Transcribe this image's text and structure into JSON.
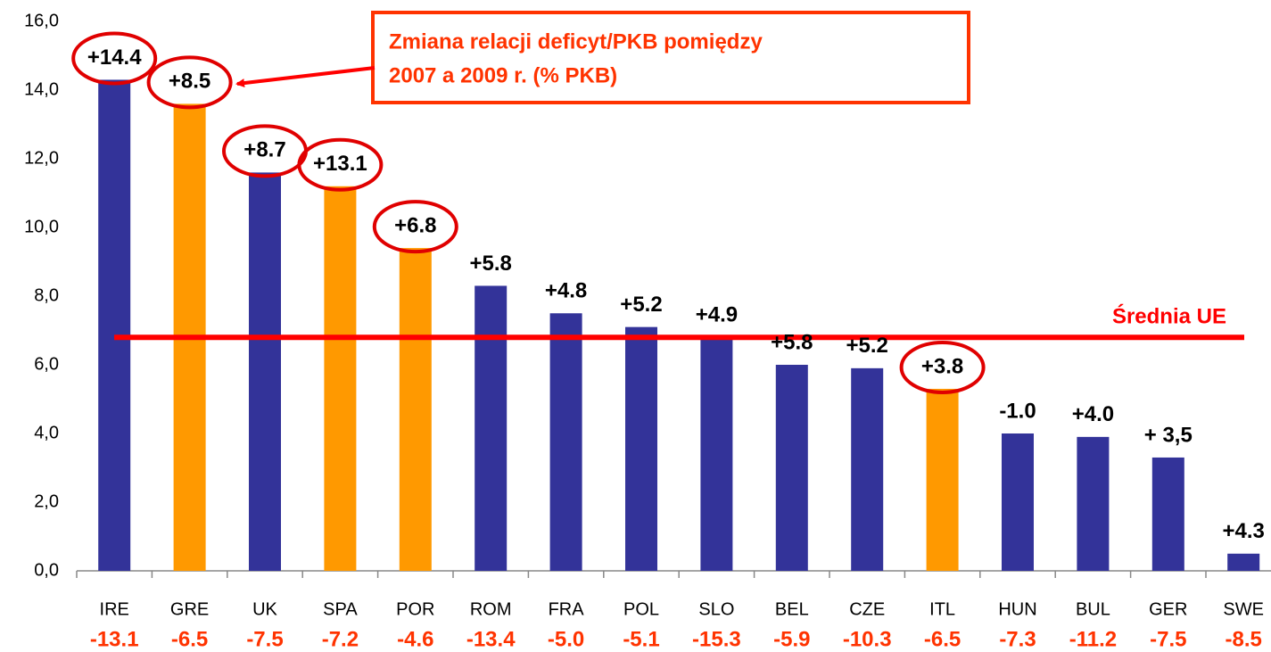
{
  "chart_data": {
    "type": "bar",
    "categories": [
      "IRE",
      "GRE",
      "UK",
      "SPA",
      "POR",
      "ROM",
      "FRA",
      "POL",
      "SLO",
      "BEL",
      "CZE",
      "ITL",
      "HUN",
      "BUL",
      "GER",
      "SWE"
    ],
    "values": [
      14.3,
      13.6,
      11.6,
      11.2,
      9.4,
      8.3,
      7.5,
      7.1,
      6.8,
      6.0,
      5.9,
      5.3,
      4.0,
      3.9,
      3.3,
      0.5
    ],
    "colors": [
      "#333399",
      "#ff9900",
      "#333399",
      "#ff9900",
      "#ff9900",
      "#333399",
      "#333399",
      "#333399",
      "#333399",
      "#333399",
      "#333399",
      "#ff9900",
      "#333399",
      "#333399",
      "#333399",
      "#333399"
    ],
    "bar_labels": [
      "+14.4",
      "+8.5",
      "+8.7",
      "+13.1",
      "+6.8",
      "+5.8",
      "+4.8",
      "+5.2",
      "+4.9",
      "+5.8",
      "+5.2",
      "+3.8",
      "-1.0",
      "+4.0",
      "+ 3,5",
      "+4.3"
    ],
    "circled": [
      true,
      true,
      true,
      true,
      true,
      false,
      false,
      false,
      false,
      false,
      false,
      true,
      false,
      false,
      false,
      false
    ],
    "bottom_labels": [
      "-13.1",
      "-6.5",
      "-7.5",
      "-7.2",
      "-4.6",
      "-13.4",
      "-5.0",
      "-5.1",
      "-15.3",
      "-5.9",
      "-10.3",
      "-6.5",
      "-7.3",
      "-11.2",
      "-7.5",
      "-8.5"
    ],
    "average": {
      "label": "Średnia UE",
      "value": 6.8,
      "color": "#ff0000"
    },
    "annotation": [
      "Zmiana relacji deficyt/PKB pomiędzy",
      "2007 a 2009 r. (% PKB)"
    ],
    "ylim": [
      0,
      16
    ],
    "yticks": [
      {
        "value": 0,
        "label": "0,0"
      },
      {
        "value": 2,
        "label": "2,0"
      },
      {
        "value": 4,
        "label": "4,0"
      },
      {
        "value": 6,
        "label": "6,0"
      },
      {
        "value": 8,
        "label": "8,0"
      },
      {
        "value": 10,
        "label": "10,0"
      },
      {
        "value": 12,
        "label": "12,0"
      },
      {
        "value": 14,
        "label": "14,0"
      },
      {
        "value": 16,
        "label": "16,0"
      }
    ]
  }
}
